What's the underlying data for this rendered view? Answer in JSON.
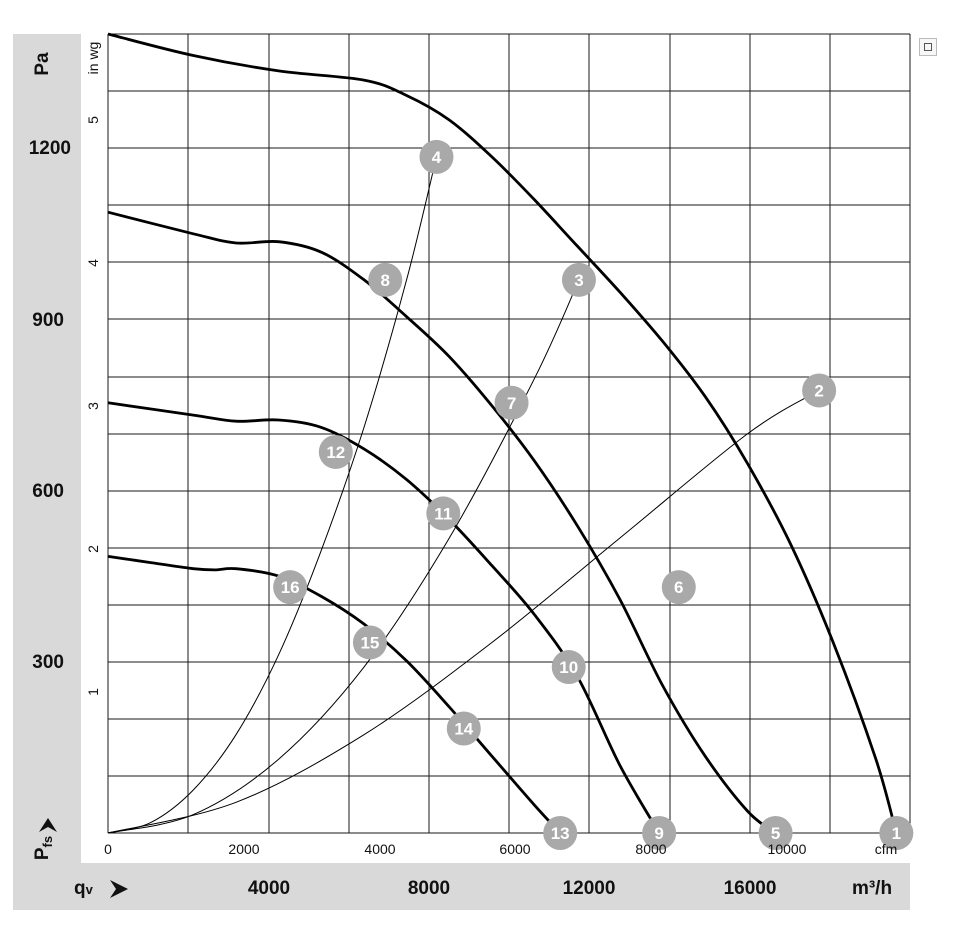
{
  "y_axis_left": {
    "unit": "Pa",
    "ticks": [
      "1200",
      "900",
      "600",
      "300"
    ],
    "symbol_main": "P",
    "symbol_sub": "fs"
  },
  "y_axis_inner": {
    "unit": "in wg",
    "ticks": [
      "5",
      "4",
      "3",
      "2",
      "1"
    ]
  },
  "x_axis_bottom": {
    "symbol_main": "q",
    "symbol_sub": "v",
    "ticks": [
      "4000",
      "8000",
      "12000",
      "16000"
    ],
    "unit": "m³/h"
  },
  "x_axis_inner": {
    "ticks": [
      "0",
      "2000",
      "4000",
      "6000",
      "8000",
      "10000"
    ],
    "unit": "cfm"
  },
  "chart_data": {
    "type": "line",
    "xlabel": "qv",
    "ylabel": "Pfs",
    "x_unit": "m³/h",
    "y_unit": "Pa",
    "xlim": [
      0,
      18800
    ],
    "ylim": [
      0,
      1300
    ],
    "series": [
      {
        "curve": "fan-curve-1",
        "x": [
          0,
          2000,
          4000,
          6000,
          7000,
          8000,
          9000,
          10000,
          11000,
          12000,
          13000,
          14000,
          15000,
          16000,
          17000,
          18000,
          18480
        ],
        "y": [
          1300,
          1265,
          1240,
          1225,
          1200,
          1160,
          1100,
          1030,
          955,
          880,
          800,
          710,
          600,
          470,
          310,
          120,
          0
        ]
      },
      {
        "curve": "fan-curve-2",
        "x": [
          0,
          2000,
          3000,
          4000,
          5000,
          6000,
          7000,
          8000,
          9000,
          10000,
          11000,
          12000,
          13000,
          14000,
          15000,
          15650
        ],
        "y": [
          1010,
          975,
          960,
          962,
          945,
          900,
          840,
          775,
          695,
          605,
          500,
          380,
          240,
          125,
          35,
          0
        ]
      },
      {
        "curve": "fan-curve-3",
        "x": [
          0,
          2000,
          3000,
          4000,
          5000,
          6000,
          7000,
          8000,
          9000,
          10000,
          11000,
          12000,
          12920
        ],
        "y": [
          700,
          680,
          670,
          672,
          660,
          625,
          575,
          510,
          435,
          355,
          255,
          110,
          0
        ]
      },
      {
        "curve": "fan-curve-4",
        "x": [
          0,
          1000,
          2000,
          2500,
          3000,
          4000,
          5000,
          6000,
          7000,
          8000,
          9000,
          10000,
          10600
        ],
        "y": [
          450,
          440,
          430,
          428,
          430,
          418,
          385,
          340,
          280,
          205,
          125,
          45,
          0
        ]
      },
      {
        "curve": "system-line-a",
        "x": [
          0,
          1000,
          2000,
          3000,
          4000,
          5000,
          6000,
          7000,
          7700
        ],
        "y": [
          0,
          17,
          70,
          160,
          290,
          460,
          660,
          900,
          1100
        ]
      },
      {
        "curve": "system-line-b",
        "x": [
          0,
          2000,
          4000,
          6000,
          8000,
          10000,
          11040
        ],
        "y": [
          0,
          30,
          120,
          270,
          480,
          740,
          900
        ]
      },
      {
        "curve": "system-line-c",
        "x": [
          0,
          3000,
          6000,
          9000,
          12000,
          15000,
          16670
        ],
        "y": [
          0,
          50,
          160,
          310,
          480,
          650,
          720
        ]
      }
    ],
    "points": [
      {
        "label": "1",
        "x": 18480,
        "y": 0
      },
      {
        "label": "2",
        "x": 16670,
        "y": 720
      },
      {
        "label": "3",
        "x": 11040,
        "y": 900
      },
      {
        "label": "4",
        "x": 7700,
        "y": 1100
      },
      {
        "label": "5",
        "x": 15650,
        "y": 0
      },
      {
        "label": "6",
        "x": 13380,
        "y": 400
      },
      {
        "label": "7",
        "x": 9460,
        "y": 700
      },
      {
        "label": "8",
        "x": 6500,
        "y": 900
      },
      {
        "label": "9",
        "x": 12920,
        "y": 0
      },
      {
        "label": "10",
        "x": 10800,
        "y": 270
      },
      {
        "label": "11",
        "x": 7860,
        "y": 520
      },
      {
        "label": "12",
        "x": 5340,
        "y": 620
      },
      {
        "label": "13",
        "x": 10600,
        "y": 0
      },
      {
        "label": "14",
        "x": 8340,
        "y": 170
      },
      {
        "label": "15",
        "x": 6140,
        "y": 310
      },
      {
        "label": "16",
        "x": 4270,
        "y": 400
      }
    ],
    "grid": true
  },
  "colors": {
    "band": "#d9d9d9",
    "marker": "#a9a9a9",
    "curve": "#000000"
  },
  "icons": {
    "top_right": "expand-icon"
  }
}
